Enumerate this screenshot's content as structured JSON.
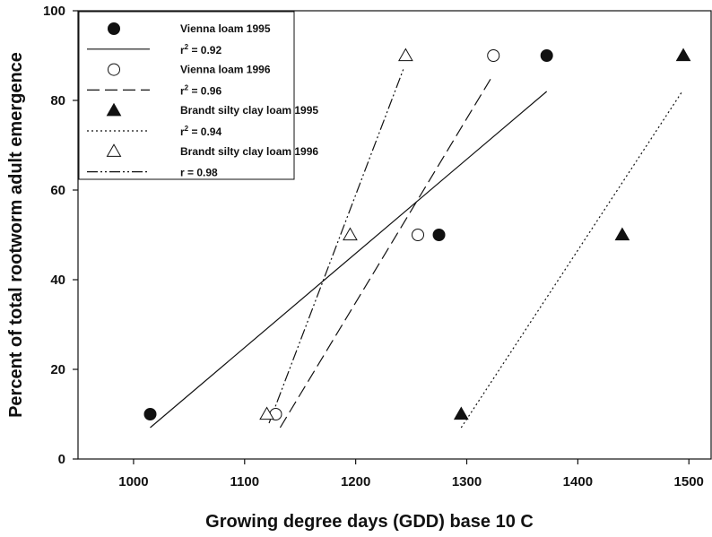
{
  "chart_data": {
    "type": "scatter",
    "title": "",
    "xlabel": "Growing degree days (GDD) base 10 C",
    "ylabel": "Percent of total rootworm adult emergence",
    "xlim": [
      950,
      1520
    ],
    "ylim": [
      0,
      100
    ],
    "xticks": [
      1000,
      1100,
      1200,
      1300,
      1400,
      1500
    ],
    "yticks": [
      0,
      20,
      40,
      60,
      80,
      100
    ],
    "grid": false,
    "legend_position": "top-left",
    "series": [
      {
        "name": "Vienna loam 1995",
        "marker": "filled-circle",
        "color": "#111111",
        "points": [
          [
            1015,
            10
          ],
          [
            1275,
            50
          ],
          [
            1372,
            90
          ]
        ],
        "fit": {
          "label": "r2 = 0.92",
          "label_prefix": "r",
          "label_sup": "2",
          "label_suffix": " = 0.92",
          "dash": "solid",
          "x": [
            1015,
            1372
          ],
          "y": [
            7,
            82
          ]
        }
      },
      {
        "name": "Vienna loam 1996",
        "marker": "open-circle",
        "color": "#111111",
        "points": [
          [
            1128,
            10
          ],
          [
            1256,
            50
          ],
          [
            1324,
            90
          ]
        ],
        "fit": {
          "label": "r2 = 0.96",
          "label_prefix": "r",
          "label_sup": "2",
          "label_suffix": " = 0.96",
          "dash": "dashed",
          "x": [
            1132,
            1322
          ],
          "y": [
            7,
            85
          ]
        }
      },
      {
        "name": "Brandt silty clay loam 1995",
        "marker": "filled-triangle",
        "color": "#111111",
        "points": [
          [
            1295,
            10
          ],
          [
            1440,
            50
          ],
          [
            1495,
            90
          ]
        ],
        "fit": {
          "label": "r2 = 0.94",
          "label_prefix": "r",
          "label_sup": "2",
          "label_suffix": " = 0.94",
          "dash": "dotted",
          "x": [
            1295,
            1494
          ],
          "y": [
            7,
            82
          ]
        }
      },
      {
        "name": "Brandt silty clay loam 1996",
        "marker": "open-triangle",
        "color": "#111111",
        "points": [
          [
            1120,
            10
          ],
          [
            1195,
            50
          ],
          [
            1245,
            90
          ]
        ],
        "fit": {
          "label": "r = 0.98",
          "label_prefix": "r = 0.98",
          "label_sup": "",
          "label_suffix": "",
          "dash": "dash-dot-dot",
          "x": [
            1122,
            1243
          ],
          "y": [
            8,
            87
          ]
        }
      }
    ]
  }
}
